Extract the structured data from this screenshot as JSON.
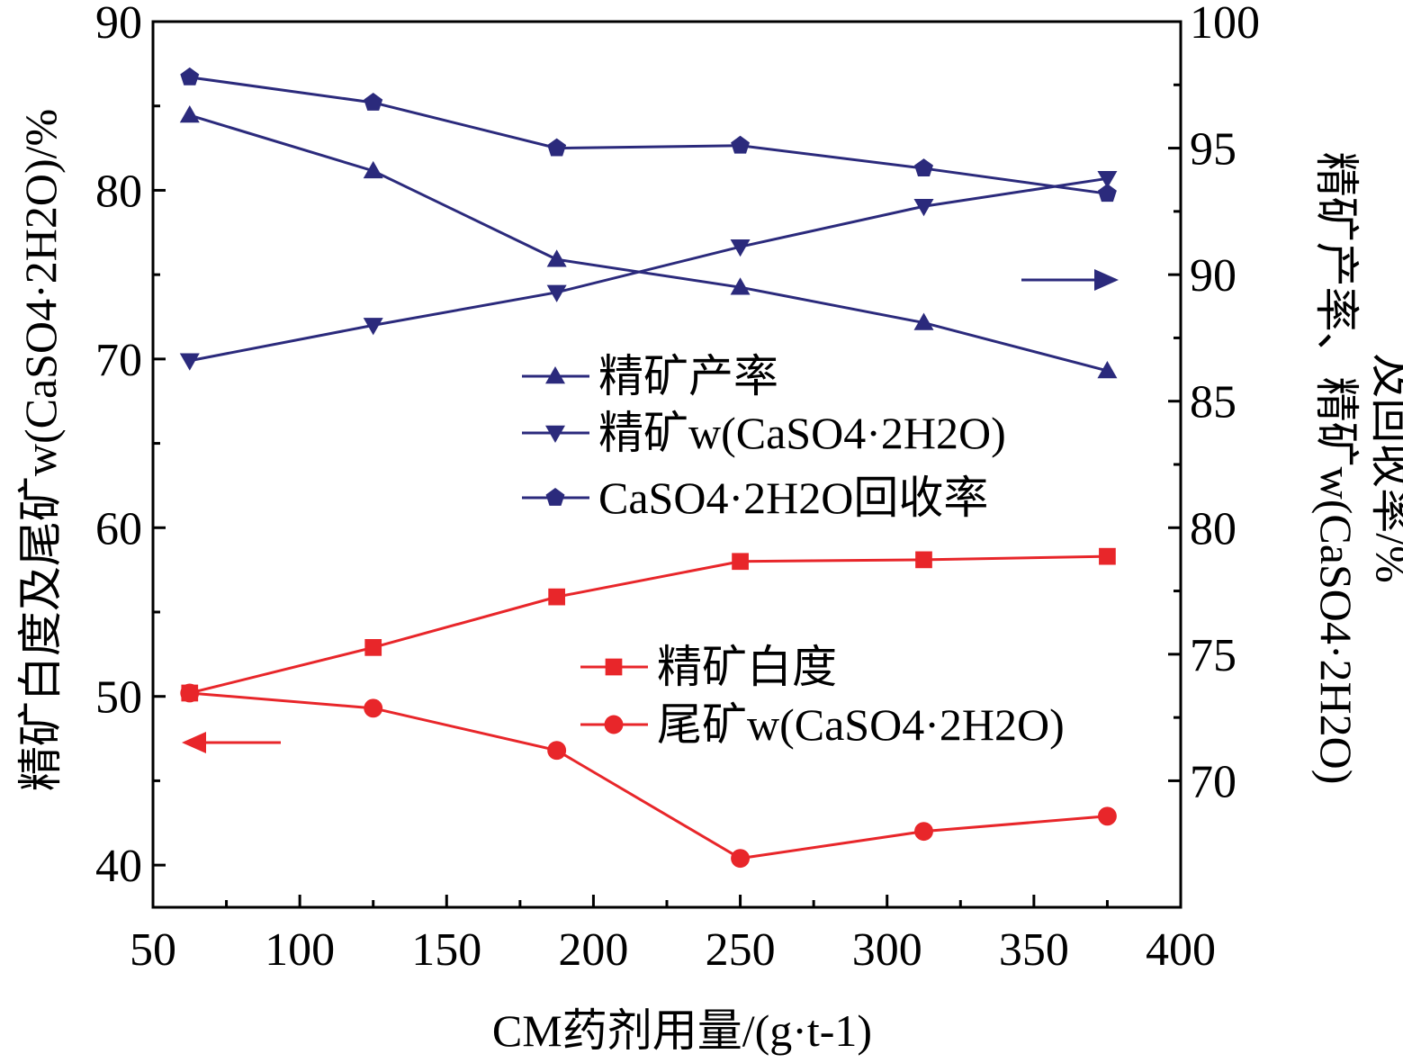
{
  "chart_data": {
    "type": "line",
    "title": "",
    "xlabel": "CM药剂用量/(g·t-1)",
    "ylabel_left": "精矿白度及尾矿w(CaSO4·2H2O)/%",
    "ylabel_right_line1": "精矿产率、精矿w(CaSO4·2H2O)",
    "ylabel_right_line2": "及回收率/%",
    "xlim": [
      50,
      400
    ],
    "ylim_left": [
      37.5,
      90
    ],
    "ylim_right": [
      65,
      100
    ],
    "x_ticks": [
      50,
      100,
      150,
      200,
      250,
      300,
      350,
      400
    ],
    "y_left_ticks": [
      40,
      50,
      60,
      70,
      80,
      90
    ],
    "y_right_ticks": [
      70,
      75,
      80,
      85,
      90,
      95,
      100
    ],
    "x": [
      62.5,
      125,
      187.5,
      250,
      312.5,
      375
    ],
    "series": [
      {
        "name": "精矿产率",
        "axis": "right",
        "marker": "triangle-up",
        "color": "#2b2a7c",
        "values": [
          96.3,
          94.1,
          90.6,
          89.5,
          88.1,
          86.2
        ]
      },
      {
        "name": "精矿w(CaSO4·2H2O)",
        "axis": "right",
        "marker": "triangle-down",
        "color": "#2b2a7c",
        "values": [
          86.6,
          88.0,
          89.3,
          91.1,
          92.7,
          93.8
        ]
      },
      {
        "name": "CaSO4·2H2O回收率",
        "axis": "right",
        "marker": "pentagon",
        "color": "#2b2a7c",
        "values": [
          97.8,
          96.8,
          95.0,
          95.1,
          94.2,
          93.2
        ]
      },
      {
        "name": "精矿白度",
        "axis": "left",
        "marker": "square",
        "color": "#e8262a",
        "values": [
          50.2,
          52.9,
          55.9,
          58.0,
          58.1,
          58.3
        ]
      },
      {
        "name": "尾矿w(CaSO4·2H2O)",
        "axis": "left",
        "marker": "circle",
        "color": "#e8262a",
        "values": [
          50.2,
          49.3,
          46.8,
          40.4,
          42.0,
          42.9
        ]
      }
    ],
    "grid": false,
    "legend_placement": "center-right"
  }
}
